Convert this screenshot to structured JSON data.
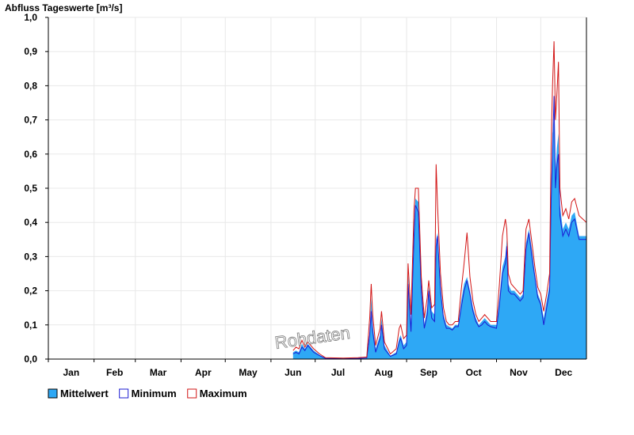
{
  "colors": {
    "mean_fill": "#2ea8f5",
    "minimum": "#1c1cd2",
    "maximum": "#d21414",
    "grid": "#e8e8e8"
  },
  "watermark": "Rohdaten",
  "chart_data": {
    "type": "area",
    "title": "Abfluss Tageswerte [m³/s]",
    "xlabel": "",
    "ylabel": "",
    "ylim": [
      0,
      1.0
    ],
    "y_ticks": [
      "0,0",
      "0,1",
      "0,2",
      "0,3",
      "0,4",
      "0,5",
      "0,6",
      "0,7",
      "0,8",
      "0,9",
      "1,0"
    ],
    "categories": [
      "Jan",
      "Feb",
      "Mar",
      "Apr",
      "May",
      "Jun",
      "Jul",
      "Aug",
      "Sep",
      "Oct",
      "Nov",
      "Dec"
    ],
    "x_unit": "day_of_year",
    "legend_position": "bottom-left",
    "grid": true,
    "series": [
      {
        "name": "Mittelwert",
        "kind": "area",
        "points": [
          [
            166,
            0.02
          ],
          [
            168,
            0.025
          ],
          [
            170,
            0.02
          ],
          [
            172,
            0.045
          ],
          [
            174,
            0.03
          ],
          [
            176,
            0.045
          ],
          [
            178,
            0.035
          ],
          [
            180,
            0.025
          ],
          [
            184,
            0.012
          ],
          [
            188,
            0.003
          ],
          [
            200,
            0.002
          ],
          [
            210,
            0.003
          ],
          [
            216,
            0.004
          ],
          [
            218,
            0.08
          ],
          [
            219,
            0.18
          ],
          [
            220,
            0.1
          ],
          [
            222,
            0.03
          ],
          [
            225,
            0.07
          ],
          [
            226,
            0.12
          ],
          [
            228,
            0.04
          ],
          [
            232,
            0.01
          ],
          [
            236,
            0.02
          ],
          [
            238,
            0.06
          ],
          [
            239,
            0.07
          ],
          [
            241,
            0.04
          ],
          [
            243,
            0.05
          ],
          [
            244,
            0.25
          ],
          [
            246,
            0.1
          ],
          [
            248,
            0.38
          ],
          [
            249,
            0.47
          ],
          [
            251,
            0.46
          ],
          [
            253,
            0.22
          ],
          [
            255,
            0.1
          ],
          [
            257,
            0.15
          ],
          [
            258,
            0.21
          ],
          [
            260,
            0.14
          ],
          [
            262,
            0.13
          ],
          [
            263,
            0.35
          ],
          [
            264,
            0.37
          ],
          [
            266,
            0.22
          ],
          [
            268,
            0.13
          ],
          [
            270,
            0.1
          ],
          [
            272,
            0.095
          ],
          [
            274,
            0.09
          ],
          [
            276,
            0.1
          ],
          [
            278,
            0.1
          ],
          [
            280,
            0.17
          ],
          [
            282,
            0.22
          ],
          [
            284,
            0.24
          ],
          [
            286,
            0.2
          ],
          [
            288,
            0.15
          ],
          [
            290,
            0.12
          ],
          [
            292,
            0.1
          ],
          [
            294,
            0.11
          ],
          [
            296,
            0.12
          ],
          [
            298,
            0.11
          ],
          [
            300,
            0.1
          ],
          [
            304,
            0.1
          ],
          [
            306,
            0.18
          ],
          [
            308,
            0.27
          ],
          [
            310,
            0.3
          ],
          [
            311,
            0.35
          ],
          [
            312,
            0.22
          ],
          [
            314,
            0.2
          ],
          [
            316,
            0.2
          ],
          [
            318,
            0.19
          ],
          [
            320,
            0.18
          ],
          [
            322,
            0.19
          ],
          [
            324,
            0.34
          ],
          [
            326,
            0.38
          ],
          [
            328,
            0.32
          ],
          [
            330,
            0.25
          ],
          [
            332,
            0.19
          ],
          [
            334,
            0.17
          ],
          [
            336,
            0.12
          ],
          [
            338,
            0.17
          ],
          [
            340,
            0.22
          ],
          [
            341,
            0.5
          ],
          [
            342,
            0.66
          ],
          [
            343,
            0.7
          ],
          [
            344,
            0.55
          ],
          [
            345,
            0.62
          ],
          [
            346,
            0.66
          ],
          [
            347,
            0.45
          ],
          [
            349,
            0.38
          ],
          [
            351,
            0.4
          ],
          [
            353,
            0.38
          ],
          [
            355,
            0.42
          ],
          [
            357,
            0.43
          ],
          [
            360,
            0.36
          ],
          [
            365,
            0.36
          ]
        ]
      },
      {
        "name": "Minimum",
        "kind": "line",
        "points": [
          [
            166,
            0.015
          ],
          [
            168,
            0.02
          ],
          [
            170,
            0.015
          ],
          [
            172,
            0.035
          ],
          [
            174,
            0.025
          ],
          [
            176,
            0.04
          ],
          [
            178,
            0.03
          ],
          [
            180,
            0.02
          ],
          [
            184,
            0.01
          ],
          [
            188,
            0.002
          ],
          [
            200,
            0.001
          ],
          [
            210,
            0.002
          ],
          [
            216,
            0.003
          ],
          [
            218,
            0.07
          ],
          [
            219,
            0.14
          ],
          [
            220,
            0.08
          ],
          [
            222,
            0.02
          ],
          [
            225,
            0.06
          ],
          [
            226,
            0.1
          ],
          [
            228,
            0.03
          ],
          [
            232,
            0.008
          ],
          [
            236,
            0.015
          ],
          [
            238,
            0.05
          ],
          [
            239,
            0.06
          ],
          [
            241,
            0.03
          ],
          [
            243,
            0.04
          ],
          [
            244,
            0.22
          ],
          [
            246,
            0.08
          ],
          [
            248,
            0.35
          ],
          [
            249,
            0.45
          ],
          [
            251,
            0.43
          ],
          [
            253,
            0.2
          ],
          [
            255,
            0.09
          ],
          [
            257,
            0.13
          ],
          [
            258,
            0.2
          ],
          [
            260,
            0.12
          ],
          [
            262,
            0.11
          ],
          [
            263,
            0.33
          ],
          [
            264,
            0.36
          ],
          [
            266,
            0.2
          ],
          [
            268,
            0.12
          ],
          [
            270,
            0.09
          ],
          [
            272,
            0.09
          ],
          [
            274,
            0.085
          ],
          [
            276,
            0.095
          ],
          [
            278,
            0.095
          ],
          [
            280,
            0.15
          ],
          [
            282,
            0.2
          ],
          [
            284,
            0.23
          ],
          [
            286,
            0.19
          ],
          [
            288,
            0.14
          ],
          [
            290,
            0.11
          ],
          [
            292,
            0.095
          ],
          [
            294,
            0.1
          ],
          [
            296,
            0.11
          ],
          [
            298,
            0.1
          ],
          [
            300,
            0.095
          ],
          [
            304,
            0.09
          ],
          [
            306,
            0.16
          ],
          [
            308,
            0.25
          ],
          [
            310,
            0.28
          ],
          [
            311,
            0.33
          ],
          [
            312,
            0.2
          ],
          [
            314,
            0.19
          ],
          [
            316,
            0.19
          ],
          [
            318,
            0.18
          ],
          [
            320,
            0.17
          ],
          [
            322,
            0.18
          ],
          [
            324,
            0.32
          ],
          [
            326,
            0.37
          ],
          [
            328,
            0.3
          ],
          [
            330,
            0.24
          ],
          [
            332,
            0.18
          ],
          [
            334,
            0.16
          ],
          [
            336,
            0.1
          ],
          [
            338,
            0.15
          ],
          [
            340,
            0.2
          ],
          [
            341,
            0.46
          ],
          [
            342,
            0.6
          ],
          [
            343,
            0.77
          ],
          [
            344,
            0.5
          ],
          [
            345,
            0.57
          ],
          [
            346,
            0.6
          ],
          [
            347,
            0.42
          ],
          [
            349,
            0.36
          ],
          [
            351,
            0.38
          ],
          [
            353,
            0.36
          ],
          [
            355,
            0.4
          ],
          [
            357,
            0.41
          ],
          [
            360,
            0.35
          ],
          [
            365,
            0.35
          ]
        ]
      },
      {
        "name": "Maximum",
        "kind": "line",
        "points": [
          [
            166,
            0.025
          ],
          [
            168,
            0.035
          ],
          [
            170,
            0.03
          ],
          [
            172,
            0.055
          ],
          [
            174,
            0.035
          ],
          [
            176,
            0.05
          ],
          [
            178,
            0.04
          ],
          [
            180,
            0.03
          ],
          [
            184,
            0.015
          ],
          [
            188,
            0.004
          ],
          [
            200,
            0.003
          ],
          [
            210,
            0.004
          ],
          [
            216,
            0.006
          ],
          [
            218,
            0.12
          ],
          [
            219,
            0.22
          ],
          [
            220,
            0.13
          ],
          [
            222,
            0.04
          ],
          [
            225,
            0.09
          ],
          [
            226,
            0.14
          ],
          [
            228,
            0.05
          ],
          [
            232,
            0.015
          ],
          [
            236,
            0.03
          ],
          [
            238,
            0.09
          ],
          [
            239,
            0.1
          ],
          [
            241,
            0.06
          ],
          [
            243,
            0.07
          ],
          [
            244,
            0.28
          ],
          [
            246,
            0.13
          ],
          [
            248,
            0.43
          ],
          [
            249,
            0.5
          ],
          [
            251,
            0.5
          ],
          [
            253,
            0.24
          ],
          [
            255,
            0.12
          ],
          [
            257,
            0.18
          ],
          [
            258,
            0.23
          ],
          [
            260,
            0.15
          ],
          [
            262,
            0.16
          ],
          [
            263,
            0.57
          ],
          [
            264,
            0.45
          ],
          [
            266,
            0.25
          ],
          [
            268,
            0.15
          ],
          [
            270,
            0.11
          ],
          [
            272,
            0.1
          ],
          [
            274,
            0.1
          ],
          [
            276,
            0.11
          ],
          [
            278,
            0.11
          ],
          [
            280,
            0.2
          ],
          [
            282,
            0.28
          ],
          [
            284,
            0.37
          ],
          [
            286,
            0.24
          ],
          [
            288,
            0.17
          ],
          [
            290,
            0.13
          ],
          [
            292,
            0.11
          ],
          [
            294,
            0.12
          ],
          [
            296,
            0.13
          ],
          [
            298,
            0.12
          ],
          [
            300,
            0.11
          ],
          [
            304,
            0.11
          ],
          [
            306,
            0.22
          ],
          [
            308,
            0.36
          ],
          [
            310,
            0.41
          ],
          [
            311,
            0.38
          ],
          [
            312,
            0.25
          ],
          [
            314,
            0.22
          ],
          [
            316,
            0.21
          ],
          [
            318,
            0.2
          ],
          [
            320,
            0.19
          ],
          [
            322,
            0.2
          ],
          [
            324,
            0.38
          ],
          [
            326,
            0.41
          ],
          [
            328,
            0.34
          ],
          [
            330,
            0.27
          ],
          [
            332,
            0.21
          ],
          [
            334,
            0.19
          ],
          [
            336,
            0.14
          ],
          [
            338,
            0.19
          ],
          [
            340,
            0.25
          ],
          [
            341,
            0.62
          ],
          [
            342,
            0.8
          ],
          [
            343,
            0.93
          ],
          [
            344,
            0.7
          ],
          [
            345,
            0.78
          ],
          [
            346,
            0.87
          ],
          [
            347,
            0.5
          ],
          [
            349,
            0.42
          ],
          [
            351,
            0.44
          ],
          [
            353,
            0.41
          ],
          [
            355,
            0.46
          ],
          [
            357,
            0.47
          ],
          [
            360,
            0.42
          ],
          [
            365,
            0.4
          ]
        ]
      }
    ]
  }
}
